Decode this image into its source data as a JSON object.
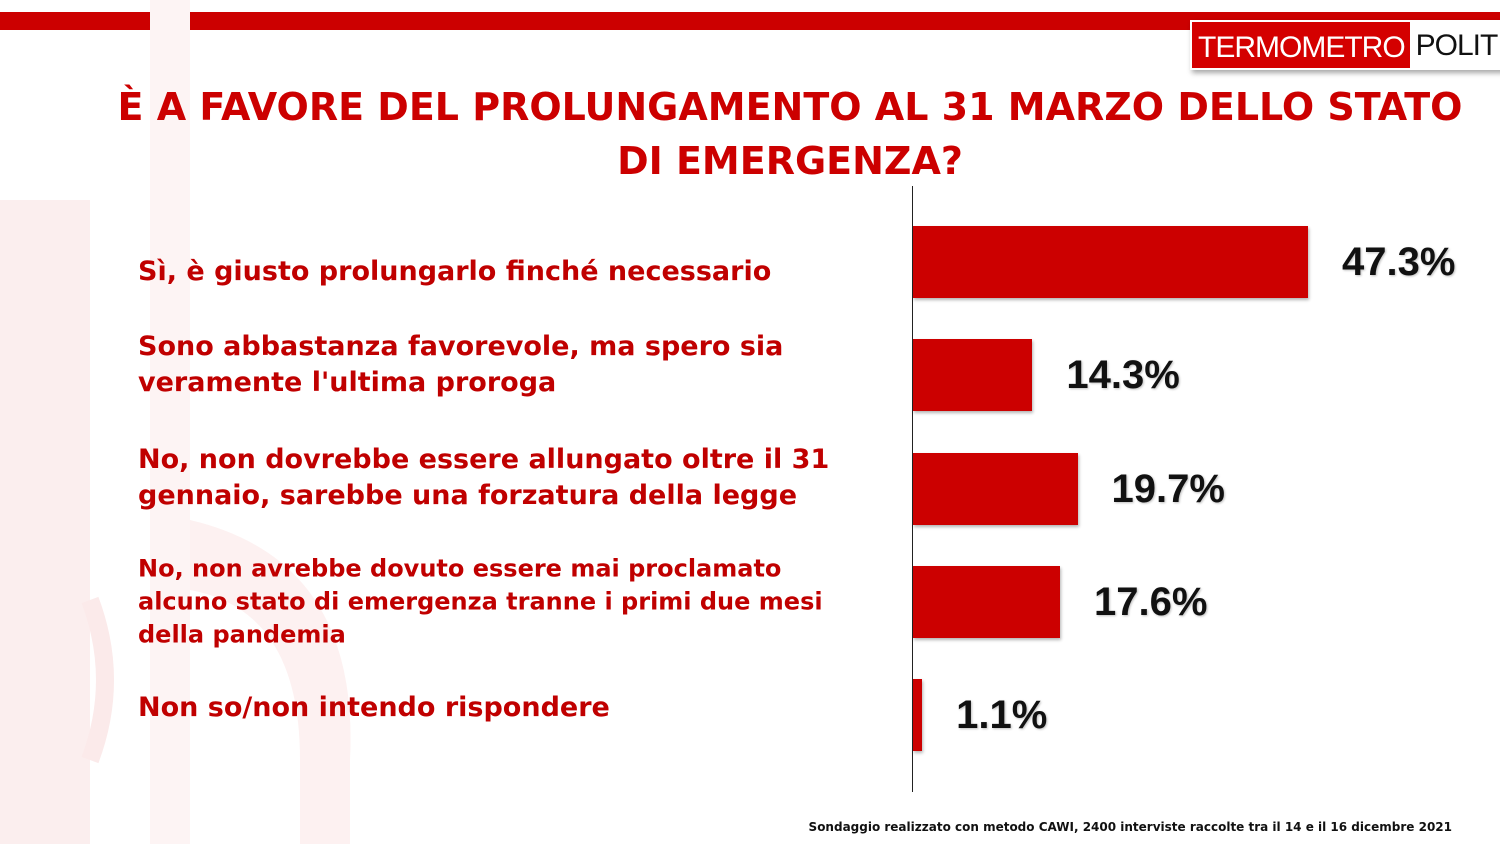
{
  "brand": {
    "part1": "TERMOMETRO",
    "part2": "POLITICO"
  },
  "colors": {
    "accent": "#cc0000",
    "label": "#c00000",
    "text": "#111111"
  },
  "chart_data": {
    "type": "bar",
    "orientation": "horizontal",
    "title": "È A FAVORE DEL PROLUNGAMENTO AL 31 MARZO DELLO STATO DI EMERGENZA?",
    "categories": [
      "Sì, è giusto prolungarlo finché necessario",
      "Sono abbastanza favorevole, ma spero sia veramente l'ultima proroga",
      "No, non dovrebbe essere allungato oltre il 31 gennaio, sarebbe una forzatura della legge",
      "No, non avrebbe dovuto essere mai proclamato alcuno stato di emergenza tranne i primi due mesi della pandemia",
      "Non so/non intendo rispondere"
    ],
    "values": [
      47.3,
      14.3,
      19.7,
      17.6,
      1.1
    ],
    "value_labels": [
      "47.3%",
      "14.3%",
      "19.7%",
      "17.6%",
      "1.1%"
    ],
    "unit": "%",
    "grid": false,
    "legend": "none"
  },
  "footnote": "Sondaggio realizzato con metodo CAWI, 2400 interviste raccolte tra il 14 e il 16 dicembre 2021"
}
